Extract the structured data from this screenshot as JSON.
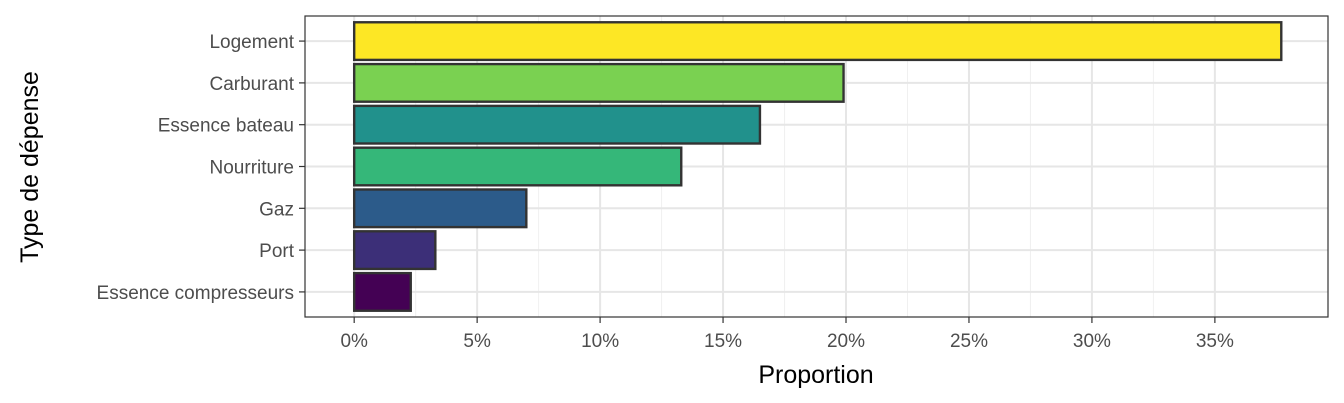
{
  "chart_data": {
    "type": "bar",
    "orientation": "horizontal",
    "xlabel": "Proportion",
    "ylabel": "Type de dépense",
    "categories": [
      "Logement",
      "Carburant",
      "Essence bateau",
      "Nourriture",
      "Gaz",
      "Port",
      "Essence compresseurs"
    ],
    "values": [
      37.7,
      19.9,
      16.5,
      13.3,
      7.0,
      3.3,
      2.3
    ],
    "colors": [
      "#fde725",
      "#7ad151",
      "#21918c",
      "#35b779",
      "#2c5b8a",
      "#3c2f78",
      "#440154"
    ],
    "xlim": [
      -2,
      39.6
    ],
    "xticks": [
      0,
      5,
      10,
      15,
      20,
      25,
      30,
      35
    ],
    "xtick_labels": [
      "0%",
      "5%",
      "10%",
      "15%",
      "20%",
      "25%",
      "30%",
      "35%"
    ],
    "grid": true,
    "legend": "none"
  }
}
